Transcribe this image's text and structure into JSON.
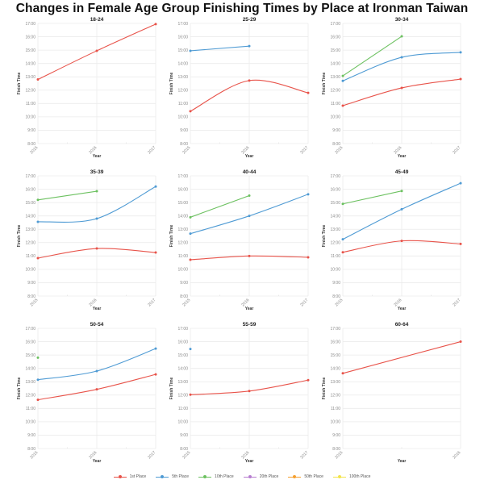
{
  "title": "Changes in Female Age Group Finishing Times by Place at Ironman Taiwan",
  "legend": {
    "items": [
      {
        "label": "1st Place",
        "color": "#e8534a"
      },
      {
        "label": "5th Place",
        "color": "#4f9bd4"
      },
      {
        "label": "10th Place",
        "color": "#6cc160"
      },
      {
        "label": "20th Place",
        "color": "#b77ed0"
      },
      {
        "label": "50th Place",
        "color": "#f5a030"
      },
      {
        "label": "100th Place",
        "color": "#f2e44a"
      }
    ]
  },
  "axes": {
    "xlabel": "Year",
    "ylabel": "Finish Time",
    "yticks": [
      "8:00",
      "9:00",
      "10:00",
      "11:00",
      "12:00",
      "13:00",
      "14:00",
      "15:00",
      "16:00",
      "17:00"
    ]
  },
  "chart_data": [
    {
      "type": "line",
      "title": "18-24",
      "xlabel": "Year",
      "ylabel": "Finish Time",
      "ylim": [
        8,
        17
      ],
      "categories": [
        "2015",
        "2016",
        "2017"
      ],
      "series": [
        {
          "name": "1st Place",
          "values": [
            12.8,
            14.95,
            16.95
          ]
        }
      ]
    },
    {
      "type": "line",
      "title": "25-29",
      "xlabel": "Year",
      "ylabel": "Finish Time",
      "ylim": [
        8,
        17
      ],
      "categories": [
        "2015",
        "2016",
        "2017"
      ],
      "series": [
        {
          "name": "1st Place",
          "values": [
            10.42,
            12.72,
            11.8
          ]
        },
        {
          "name": "5th Place",
          "values": [
            14.95,
            15.3,
            null
          ]
        }
      ]
    },
    {
      "type": "line",
      "title": "30-34",
      "xlabel": "Year",
      "ylabel": "Finish Time",
      "ylim": [
        8,
        17
      ],
      "categories": [
        "2015",
        "2016",
        "2017"
      ],
      "series": [
        {
          "name": "1st Place",
          "values": [
            10.84,
            12.17,
            12.83
          ]
        },
        {
          "name": "5th Place",
          "values": [
            12.7,
            14.46,
            14.83
          ]
        },
        {
          "name": "10th Place",
          "values": [
            13.07,
            16.03,
            null
          ]
        }
      ]
    },
    {
      "type": "line",
      "title": "35-39",
      "xlabel": "Year",
      "ylabel": "Finish Time",
      "ylim": [
        8,
        17
      ],
      "categories": [
        "2015",
        "2016",
        "2017"
      ],
      "series": [
        {
          "name": "1st Place",
          "values": [
            10.84,
            11.56,
            11.26
          ]
        },
        {
          "name": "5th Place",
          "values": [
            13.56,
            13.8,
            16.2
          ]
        },
        {
          "name": "10th Place",
          "values": [
            15.2,
            15.85,
            null
          ]
        }
      ]
    },
    {
      "type": "line",
      "title": "40-44",
      "xlabel": "Year",
      "ylabel": "Finish Time",
      "ylim": [
        8,
        17
      ],
      "categories": [
        "2015",
        "2016",
        "2017"
      ],
      "series": [
        {
          "name": "1st Place",
          "values": [
            10.72,
            11.0,
            10.9
          ]
        },
        {
          "name": "5th Place",
          "values": [
            12.67,
            14.0,
            15.62
          ]
        },
        {
          "name": "10th Place",
          "values": [
            13.9,
            15.52,
            null
          ]
        }
      ]
    },
    {
      "type": "line",
      "title": "45-49",
      "xlabel": "Year",
      "ylabel": "Finish Time",
      "ylim": [
        8,
        17
      ],
      "categories": [
        "2015",
        "2016",
        "2017"
      ],
      "series": [
        {
          "name": "1st Place",
          "values": [
            11.28,
            12.13,
            11.9
          ]
        },
        {
          "name": "5th Place",
          "values": [
            12.25,
            14.5,
            16.45
          ]
        },
        {
          "name": "10th Place",
          "values": [
            14.9,
            15.87,
            null
          ]
        }
      ]
    },
    {
      "type": "line",
      "title": "50-54",
      "xlabel": "Year",
      "ylabel": "Finish Time",
      "ylim": [
        8,
        17
      ],
      "categories": [
        "2015",
        "2016",
        "2017"
      ],
      "series": [
        {
          "name": "1st Place",
          "values": [
            11.65,
            12.43,
            13.55
          ]
        },
        {
          "name": "5th Place",
          "values": [
            13.15,
            13.8,
            15.48
          ]
        },
        {
          "name": "10th Place",
          "values": [
            14.8,
            null,
            null
          ]
        }
      ]
    },
    {
      "type": "line",
      "title": "55-59",
      "xlabel": "Year",
      "ylabel": "Finish Time",
      "ylim": [
        8,
        17
      ],
      "categories": [
        "2015",
        "2016",
        "2017"
      ],
      "series": [
        {
          "name": "1st Place",
          "values": [
            12.03,
            12.3,
            13.12
          ]
        },
        {
          "name": "5th Place",
          "values": [
            15.45,
            null,
            null
          ]
        }
      ]
    },
    {
      "type": "line",
      "title": "60-64",
      "xlabel": "Year",
      "ylabel": "Finish Time",
      "ylim": [
        8,
        17
      ],
      "categories": [
        "2015",
        "2016"
      ],
      "series": [
        {
          "name": "1st Place",
          "values": [
            13.63,
            16.0
          ]
        }
      ]
    }
  ]
}
